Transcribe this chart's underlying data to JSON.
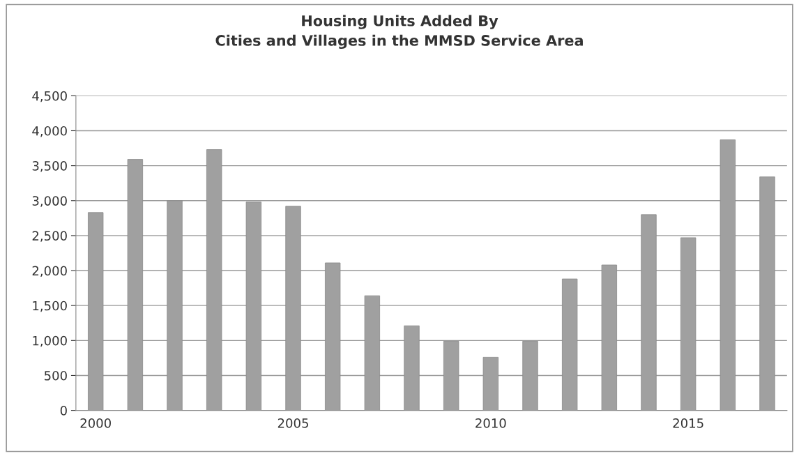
{
  "chart_data": {
    "type": "bar",
    "title": "Housing Units Added By\nCities and Villages in the MMSD Service Area",
    "categories": [
      "2000",
      null,
      null,
      null,
      null,
      "2005",
      null,
      null,
      null,
      null,
      "2010",
      null,
      null,
      null,
      null,
      "2015",
      null,
      null
    ],
    "values": [
      2830,
      3590,
      3000,
      3730,
      2980,
      2920,
      2110,
      1640,
      1210,
      990,
      760,
      990,
      1880,
      2080,
      2800,
      2470,
      3870,
      3340
    ],
    "color": "#a0a0a0",
    "ylim": [
      0,
      4500
    ],
    "yticks": [
      {
        "value": 0,
        "label": "0"
      },
      {
        "value": 500,
        "label": "500"
      },
      {
        "value": 1000,
        "label": "1,000"
      },
      {
        "value": 1500,
        "label": "1,500"
      },
      {
        "value": 2000,
        "label": "2,000"
      },
      {
        "value": 2500,
        "label": "2,500"
      },
      {
        "value": 3000,
        "label": "3,000"
      },
      {
        "value": 3500,
        "label": "3,500"
      },
      {
        "value": 4000,
        "label": "4,000"
      },
      {
        "value": 4500,
        "label": "4,500"
      }
    ],
    "grid": "y"
  }
}
